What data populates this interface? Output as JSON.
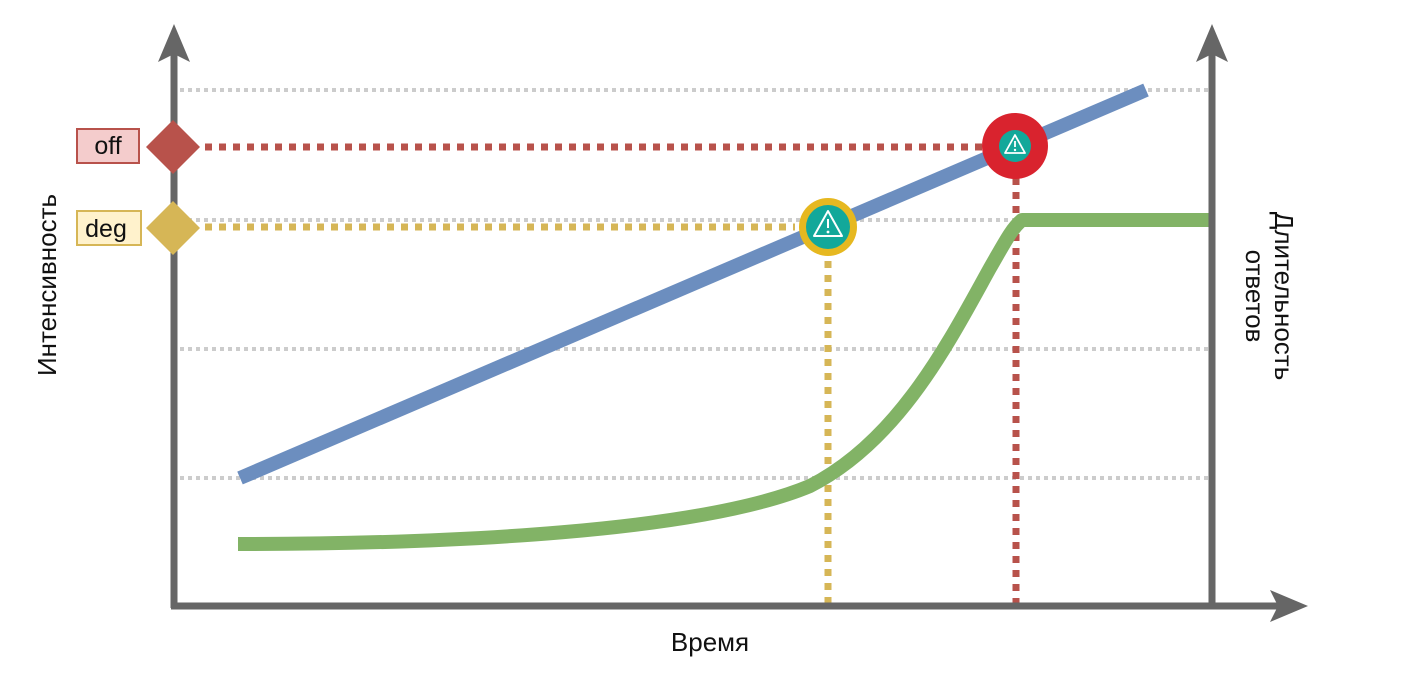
{
  "axes": {
    "x_label": "Время",
    "y_left_label": "Интенсивность",
    "y_right_label_line1": "Длительность",
    "y_right_label_line2": "ответов"
  },
  "thresholds": {
    "off": {
      "label": "off",
      "color": "#b8524b",
      "box_fill": "#f4cccc"
    },
    "deg": {
      "label": "deg",
      "color": "#d6b656",
      "box_fill": "#fff2cc"
    }
  },
  "series": {
    "intensity": {
      "color": "#6c8ebf",
      "shape": "straight line rising"
    },
    "response_time": {
      "color": "#82b366",
      "shape": "flat then S-curve to plateau"
    }
  },
  "markers": {
    "degradation_alert": {
      "icon": "warning-icon",
      "ring_color": "#e6b820",
      "fill": "#12a89a"
    },
    "off_alert": {
      "icon": "warning-icon",
      "ring_color": "#d9232e",
      "fill": "#12a89a"
    }
  },
  "colors": {
    "axis": "#666666",
    "grid": "#cccccc"
  }
}
